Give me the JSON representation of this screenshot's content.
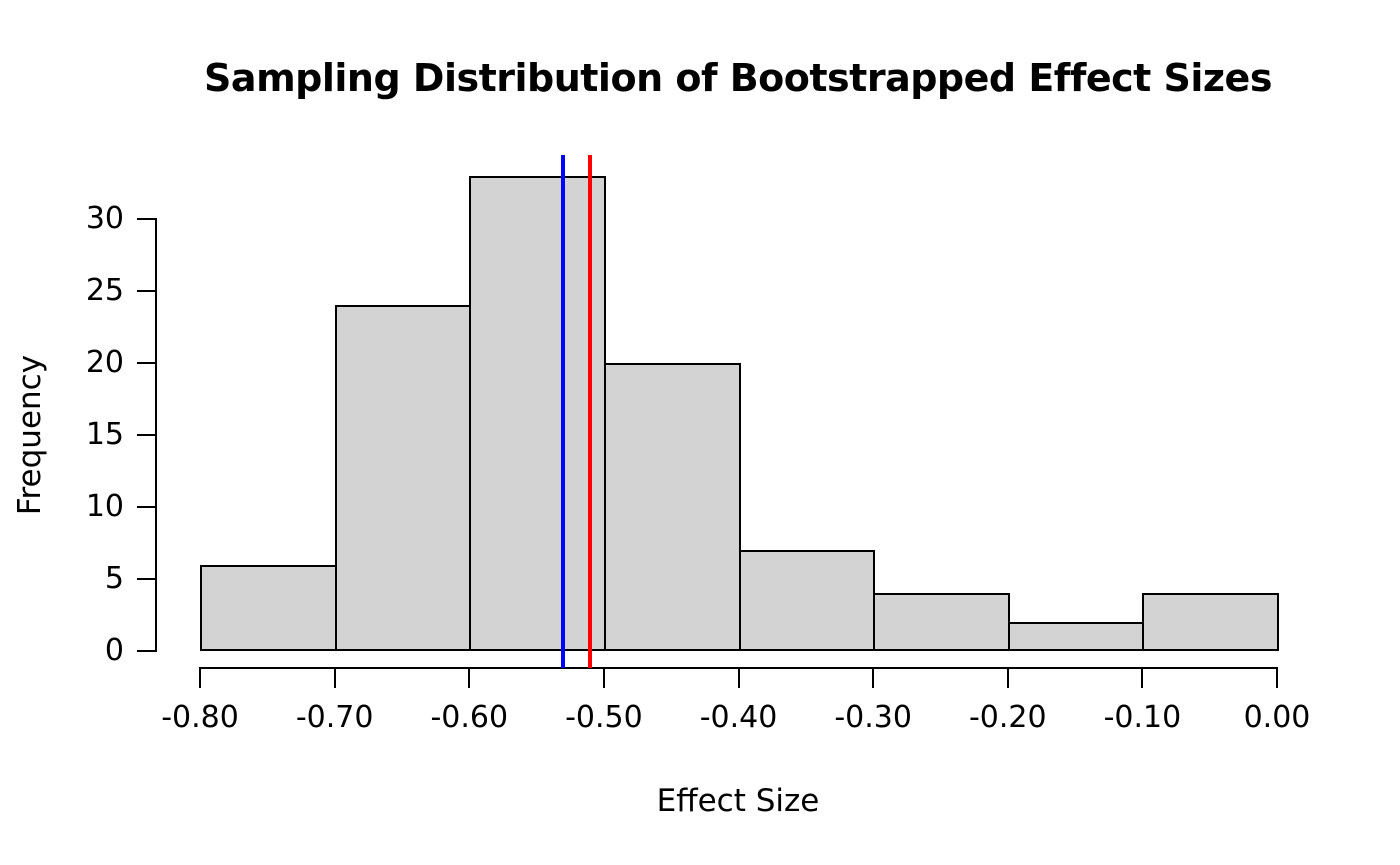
{
  "chart_data": {
    "type": "bar",
    "subtype": "histogram",
    "title": "Sampling Distribution of Bootstrapped Effect Sizes",
    "xlabel": "Effect Size",
    "ylabel": "Frequency",
    "bin_edges": [
      -0.8,
      -0.7,
      -0.6,
      -0.5,
      -0.4,
      -0.3,
      -0.2,
      -0.1,
      0.0
    ],
    "counts": [
      6,
      24,
      33,
      20,
      7,
      4,
      2,
      4
    ],
    "xlim": [
      -0.8,
      0.0
    ],
    "ylim": [
      0,
      33
    ],
    "grid": false,
    "legend": "none",
    "xtick_values": [
      -0.8,
      -0.7,
      -0.6,
      -0.5,
      -0.4,
      -0.3,
      -0.2,
      -0.1,
      0.0
    ],
    "xtick_labels": [
      "-0.80",
      "-0.70",
      "-0.60",
      "-0.50",
      "-0.40",
      "-0.30",
      "-0.20",
      "-0.10",
      "0.00"
    ],
    "ytick_values": [
      0,
      5,
      10,
      15,
      20,
      25,
      30
    ],
    "ytick_labels": [
      "0",
      "5",
      "10",
      "15",
      "20",
      "25",
      "30"
    ],
    "bar_fill_color": "#D3D3D3",
    "bar_border_color": "#000000",
    "axis_color": "#000000",
    "vlines": [
      {
        "name": "blue-vline",
        "x": -0.53,
        "color": "#0000FF"
      },
      {
        "name": "red-vline",
        "x": -0.51,
        "color": "#FF0000"
      }
    ]
  }
}
